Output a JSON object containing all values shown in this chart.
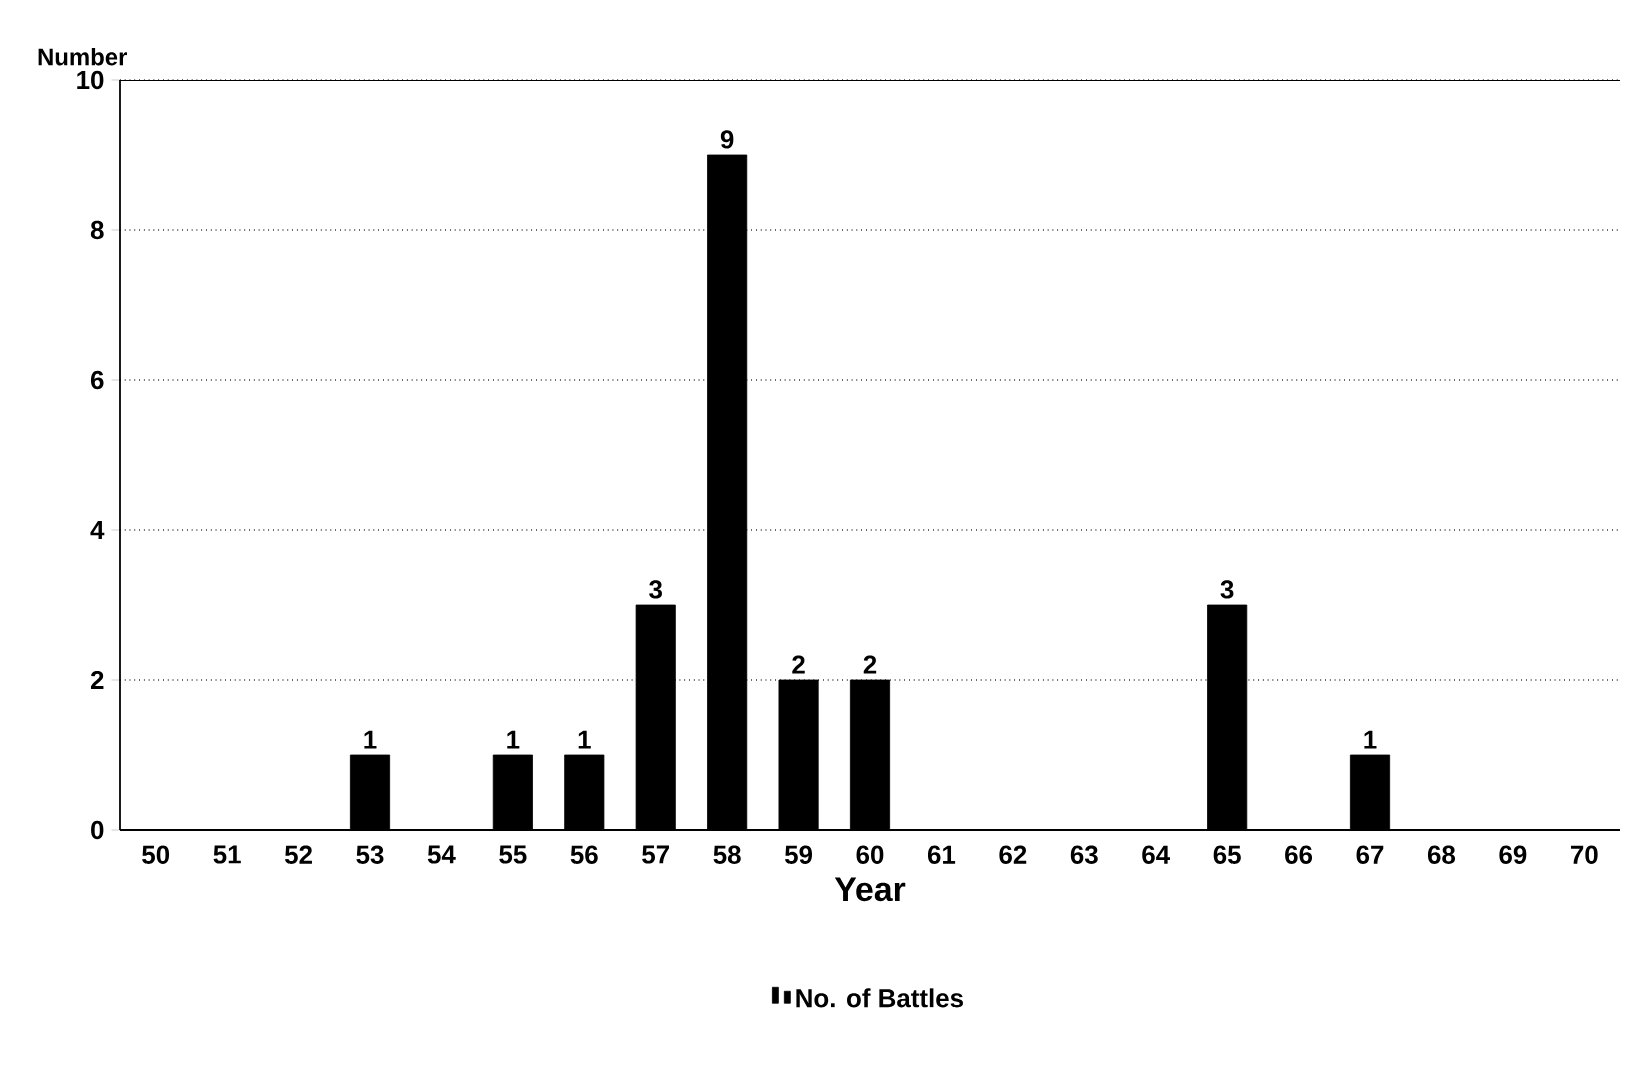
{
  "chart_data": {
    "type": "bar",
    "xlabel": "Year",
    "ylabel": "Number",
    "categories": [
      "50",
      "51",
      "52",
      "53",
      "54",
      "55",
      "56",
      "57",
      "58",
      "59",
      "60",
      "61",
      "62",
      "63",
      "64",
      "65",
      "66",
      "67",
      "68",
      "69",
      "70"
    ],
    "series": [
      {
        "name": "No. of Battles",
        "color": "#000000",
        "values": [
          0,
          0,
          0,
          1,
          0,
          1,
          1,
          3,
          9,
          2,
          2,
          0,
          0,
          0,
          0,
          3,
          0,
          1,
          0,
          0,
          0
        ],
        "value_labels": [
          null,
          null,
          null,
          "1",
          null,
          "1",
          "1",
          "3",
          "9",
          "2",
          "2",
          null,
          null,
          null,
          null,
          "3",
          null,
          "1",
          null,
          null,
          null
        ]
      }
    ],
    "ylim": [
      0,
      10
    ],
    "yticks": [
      0,
      2,
      4,
      6,
      8,
      10
    ],
    "grid": "y",
    "legend": "bottom"
  }
}
